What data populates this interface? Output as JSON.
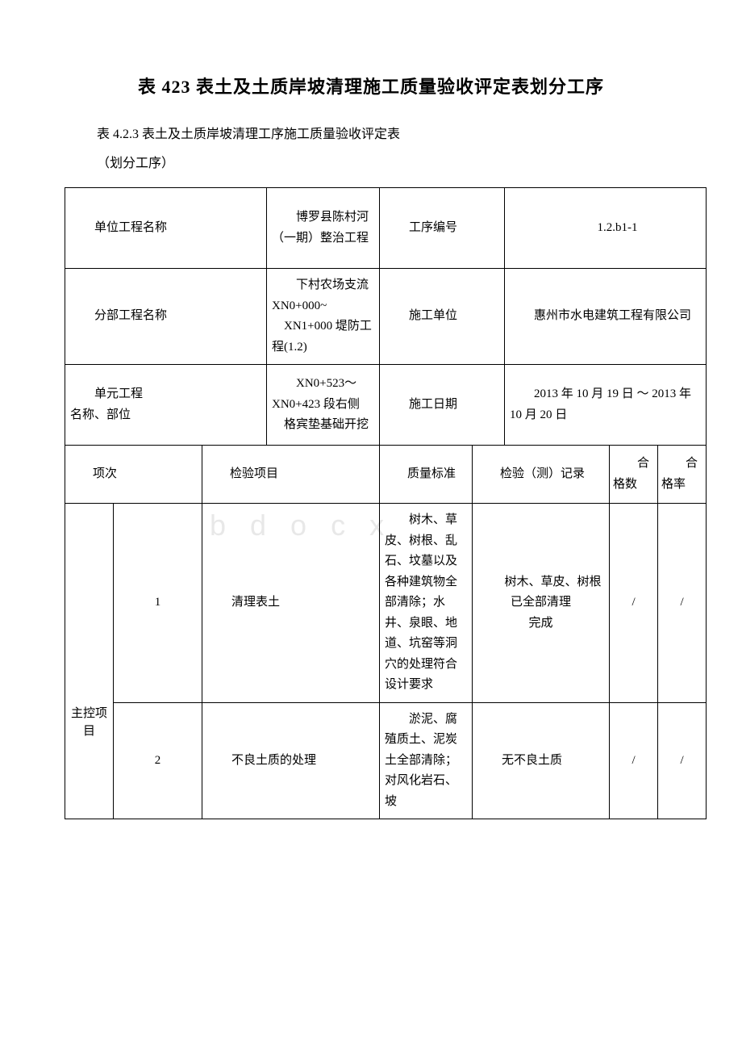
{
  "title": "表 423 表土及土质岸坡清理施工质量验收评定表划分工序",
  "subtitle": "表 4.2.3 表土及土质岸坡清理工序施工质量验收评定表",
  "note": "（划分工序）",
  "headerRows": [
    {
      "label": "单位工程名称",
      "value1": "博罗县陈村河（一期）整治工程",
      "label2": "工序编号",
      "value2": "1.2.b1-1"
    },
    {
      "label": "分部工程名称",
      "value1": "下村农场支流XN0+000~\n　XN1+000 堤防工程(1.2)",
      "label2": "施工单位",
      "value2": "惠州市水电建筑工程有限公司"
    },
    {
      "label": "单元工程\n名称、部位",
      "value1": "XN0+523～XN0+423 段右侧\n　格宾垫基础开挖",
      "label2": "施工日期",
      "value2": "2013 年 10 月 19 日 ～ 2013 年 10 月 20 日"
    }
  ],
  "columnHeaders": {
    "c1": "项次",
    "c2": "检验项目",
    "c3": "质量标准",
    "c4": "检验（测）记录",
    "c5": "合格数",
    "c6": "合格率"
  },
  "sectionLabel": "主控项目",
  "rows": [
    {
      "num": "1",
      "item": "清理表土",
      "standard": "树木、草皮、树根、乱石、坟墓以及各种建筑物全部清除；水井、泉眼、地道、坑窑等洞穴的处理符合设计要求",
      "record": "树木、草皮、树根已全部清理\n完成",
      "pass": "/",
      "rate": "/"
    },
    {
      "num": "2",
      "item": "不良土质的处理",
      "standard": "淤泥、腐殖质土、泥炭土全部清除；对风化岩石、坡",
      "record": "无不良土质",
      "pass": "/",
      "rate": "/"
    }
  ],
  "watermark": "bdocx"
}
